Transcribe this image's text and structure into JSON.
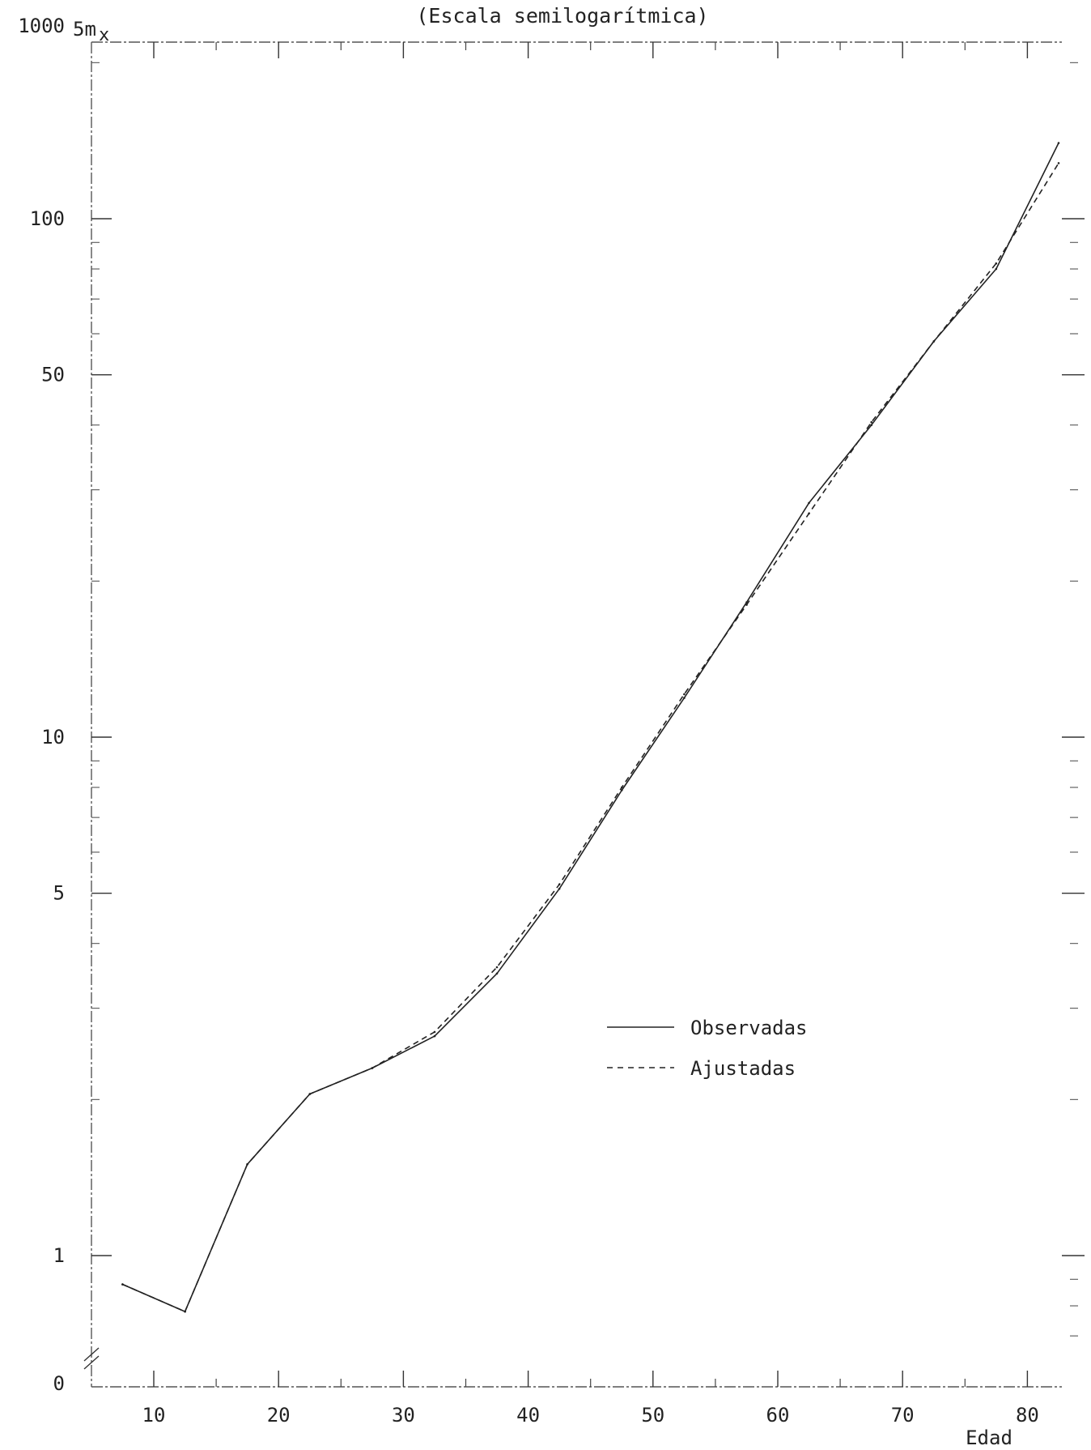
{
  "chart_data": {
    "type": "line",
    "title": "",
    "subtitle": "(Escala semilogarítmica)",
    "ylabel": "5m",
    "ylabel_sub": "x",
    "xlabel": "Edad",
    "x_ticks": [
      10,
      20,
      30,
      40,
      50,
      60,
      70,
      80
    ],
    "x_ticklabels": [
      "10",
      "20",
      "30",
      "40",
      "50",
      "60",
      "70",
      "80"
    ],
    "xlim": [
      5,
      85
    ],
    "y_scale": "log",
    "ylim": [
      0.7,
      1000
    ],
    "y_ticks": [
      1,
      5,
      10,
      50,
      100,
      1000
    ],
    "y_ticklabels": [
      "1",
      "5",
      "10",
      "50",
      "100",
      "1000"
    ],
    "y_zero_label": "0",
    "y_axis_break": true,
    "legend": {
      "placement": "center-right",
      "entries": [
        "Observadas",
        "Ajustadas"
      ]
    },
    "series": [
      {
        "name": "Observadas",
        "style": "solid",
        "x": [
          7.5,
          12.5,
          17.5,
          22.5,
          27.5,
          32.5,
          37.5,
          42.5,
          47.5,
          52.5,
          57.5,
          62.5,
          67.5,
          72.5,
          77.5,
          82.5
        ],
        "y": [
          0.88,
          0.78,
          1.5,
          2.05,
          2.3,
          2.65,
          3.5,
          5.1,
          7.9,
          11.9,
          18.2,
          28.3,
          40,
          58,
          80,
          140
        ]
      },
      {
        "name": "Ajustadas",
        "style": "dashed",
        "x": [
          7.5,
          12.5,
          17.5,
          22.5,
          27.5,
          32.5,
          37.5,
          42.5,
          47.5,
          52.5,
          57.5,
          62.5,
          67.5,
          72.5,
          77.5,
          82.5
        ],
        "y": [
          0.88,
          0.78,
          1.5,
          2.05,
          2.3,
          2.7,
          3.6,
          5.2,
          8.0,
          12.1,
          18.0,
          27.0,
          40.5,
          58,
          82,
          128
        ]
      }
    ]
  }
}
